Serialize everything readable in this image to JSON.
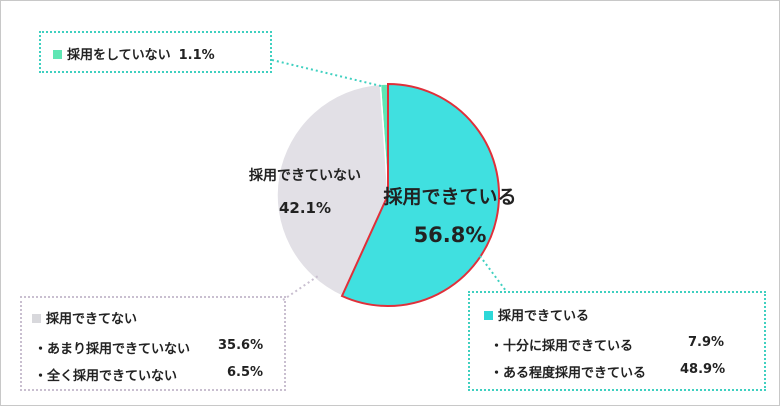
{
  "chart_data": {
    "type": "pie",
    "slices": [
      {
        "label": "採用できている",
        "value": 56.8,
        "color": "#40e0e0",
        "stroke": "#e0303a"
      },
      {
        "label": "採用できていない",
        "value": 42.1,
        "color": "#e2e0e6",
        "stroke": "#ffffff"
      },
      {
        "label": "採用をしていない",
        "value": 1.1,
        "color": "#5fe6b4",
        "stroke": "#ffffff"
      }
    ]
  },
  "pie_labels": {
    "yes_label": "採用できている",
    "yes_value": "56.8%",
    "no_label": "採用できていない",
    "no_value": "42.1%"
  },
  "boxes": {
    "not_hiring": {
      "label": "採用をしていない",
      "value": "1.1%",
      "color": "#5fe6b4"
    },
    "cannot_hire": {
      "title": "採用できてない",
      "color": "#d8d8dc",
      "items": [
        {
          "label": "・あまり採用できていない",
          "value": "35.6%"
        },
        {
          "label": "・全く採用できていない",
          "value": "6.5%"
        }
      ]
    },
    "can_hire": {
      "title": "採用できている",
      "color": "#2dd8d8",
      "items": [
        {
          "label": "・十分に採用できている",
          "value": "7.9%"
        },
        {
          "label": "・ある程度採用できている",
          "value": "48.9%"
        }
      ]
    }
  }
}
